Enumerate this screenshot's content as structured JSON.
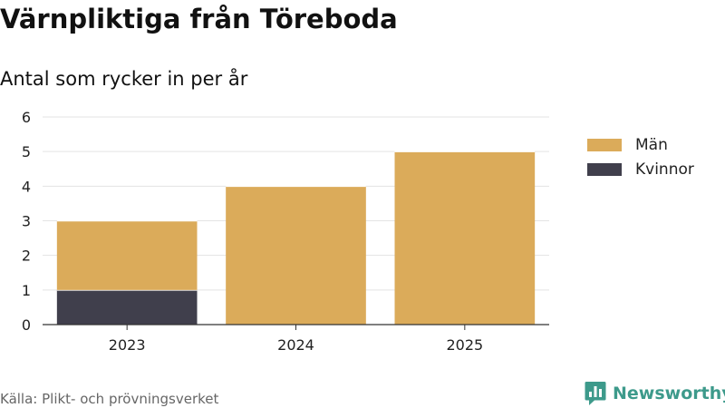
{
  "title": "Värnpliktiga från Töreboda",
  "subtitle": "Antal som rycker in per år",
  "source": "Källa: Plikt- och prövningsverket",
  "brand": {
    "name": "Newsworthy",
    "color": "#3d9a8b",
    "icon": "bar-chart-badge-icon"
  },
  "colors": {
    "grid": "#e3e3e3",
    "axis": "#333333",
    "tick_text": "#222222"
  },
  "chart_data": {
    "type": "bar",
    "stacked": true,
    "title": "Värnpliktiga från Töreboda",
    "subtitle": "Antal som rycker in per år",
    "xlabel": "",
    "ylabel": "",
    "categories": [
      "2023",
      "2024",
      "2025"
    ],
    "series": [
      {
        "name": "Kvinnor",
        "values": [
          1,
          0,
          0
        ],
        "color": "#403f4c"
      },
      {
        "name": "Män",
        "values": [
          2,
          4,
          5
        ],
        "color": "#dbab5a"
      }
    ],
    "ylim": [
      0,
      6
    ],
    "yticks": [
      "0",
      "1",
      "2",
      "3",
      "4",
      "5",
      "6"
    ],
    "grid": true,
    "legend": {
      "position": "right",
      "items": [
        {
          "name": "Män",
          "color": "#dbab5a"
        },
        {
          "name": "Kvinnor",
          "color": "#403f4c"
        }
      ]
    }
  }
}
